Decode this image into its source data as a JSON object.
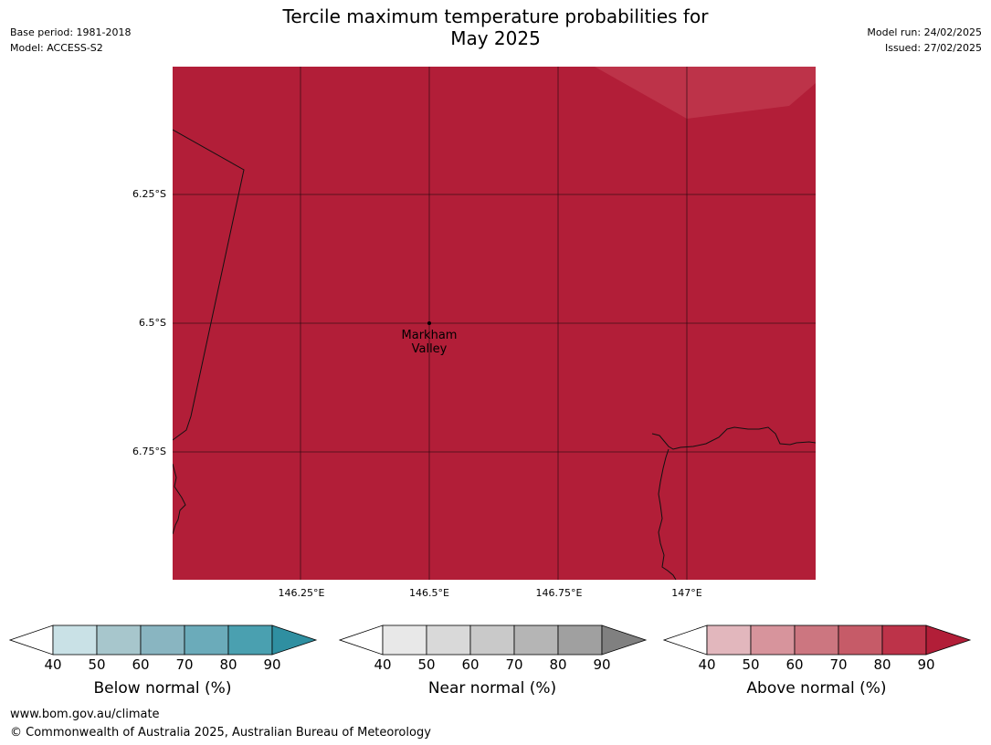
{
  "title": {
    "line1": "Tercile maximum temperature probabilities for",
    "line2": "May 2025"
  },
  "meta_left": {
    "base_period": "Base period: 1981-2018",
    "model": "Model: ACCESS-S2"
  },
  "meta_right": {
    "model_run": "Model run: 24/02/2025",
    "issued": "Issued: 27/02/2025"
  },
  "map": {
    "fill_color": "#b21e38",
    "light_patch_color": "#bd3349",
    "lat_labels": [
      "6.25°S",
      "6.5°S",
      "6.75°S"
    ],
    "lon_labels": [
      "146.25°E",
      "146.5°E",
      "146.75°E",
      "147°E"
    ],
    "location": {
      "line1": "Markham",
      "line2": "Valley"
    }
  },
  "legends": [
    {
      "title": "Below normal (%)",
      "ticks": [
        "40",
        "50",
        "60",
        "70",
        "80",
        "90"
      ],
      "colors": [
        "#c9e1e6",
        "#a7c6cc",
        "#89b5c1",
        "#6babba",
        "#4aa0b0",
        "#2f8fa1"
      ]
    },
    {
      "title": "Near normal (%)",
      "ticks": [
        "40",
        "50",
        "60",
        "70",
        "80",
        "90"
      ],
      "colors": [
        "#e8e8e8",
        "#d9d9d9",
        "#c9c9c9",
        "#b5b5b5",
        "#a0a0a0",
        "#808080"
      ]
    },
    {
      "title": "Above normal (%)",
      "ticks": [
        "40",
        "50",
        "60",
        "70",
        "80",
        "90"
      ],
      "colors": [
        "#e2b7bd",
        "#d7949c",
        "#cc7680",
        "#c65b68",
        "#bd3349",
        "#b21e38"
      ]
    }
  ],
  "footer": {
    "website": "www.bom.gov.au/climate",
    "copyright": "© Commonwealth of Australia 2025, Australian Bureau of Meteorology"
  }
}
